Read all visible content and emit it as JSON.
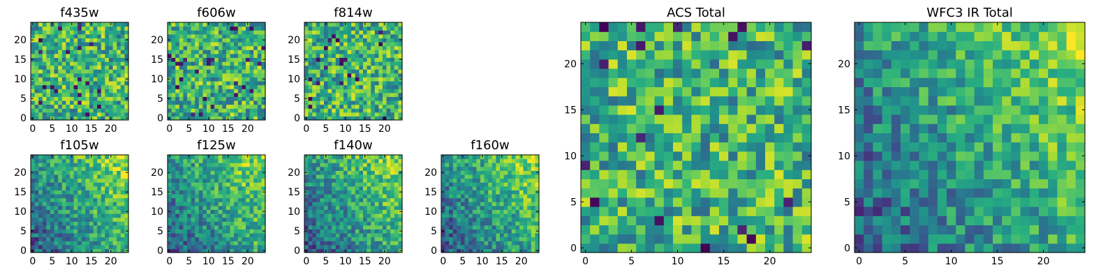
{
  "chart_data": [
    {
      "type": "heatmap",
      "title": "f435w",
      "grid_size": 25,
      "xticks": [
        0,
        5,
        10,
        15,
        20
      ],
      "yticks": [
        0,
        5,
        10,
        15,
        20
      ],
      "xlim": [
        -0.5,
        24.5
      ],
      "ylim": [
        -0.5,
        24.5
      ],
      "colormap": "viridis",
      "pattern": "noise",
      "seed": 11
    },
    {
      "type": "heatmap",
      "title": "f606w",
      "grid_size": 25,
      "xticks": [
        0,
        5,
        10,
        15,
        20
      ],
      "yticks": [
        0,
        5,
        10,
        15,
        20
      ],
      "xlim": [
        -0.5,
        24.5
      ],
      "ylim": [
        -0.5,
        24.5
      ],
      "colormap": "viridis",
      "pattern": "noise",
      "seed": 23
    },
    {
      "type": "heatmap",
      "title": "f814w",
      "grid_size": 25,
      "xticks": [
        0,
        5,
        10,
        15,
        20
      ],
      "yticks": [
        0,
        5,
        10,
        15,
        20
      ],
      "xlim": [
        -0.5,
        24.5
      ],
      "ylim": [
        -0.5,
        24.5
      ],
      "colormap": "viridis",
      "pattern": "noise",
      "seed": 37
    },
    {
      "type": "heatmap",
      "title": "f105w",
      "grid_size": 25,
      "xticks": [
        0,
        5,
        10,
        15,
        20
      ],
      "yticks": [
        0,
        5,
        10,
        15,
        20
      ],
      "xlim": [
        -0.5,
        24.5
      ],
      "ylim": [
        -0.5,
        24.5
      ],
      "colormap": "viridis",
      "pattern": "gradient",
      "seed": 41
    },
    {
      "type": "heatmap",
      "title": "f125w",
      "grid_size": 25,
      "xticks": [
        0,
        5,
        10,
        15,
        20
      ],
      "yticks": [
        0,
        5,
        10,
        15,
        20
      ],
      "xlim": [
        -0.5,
        24.5
      ],
      "ylim": [
        -0.5,
        24.5
      ],
      "colormap": "viridis",
      "pattern": "gradient",
      "seed": 53
    },
    {
      "type": "heatmap",
      "title": "f140w",
      "grid_size": 25,
      "xticks": [
        0,
        5,
        10,
        15,
        20
      ],
      "yticks": [
        0,
        5,
        10,
        15,
        20
      ],
      "xlim": [
        -0.5,
        24.5
      ],
      "ylim": [
        -0.5,
        24.5
      ],
      "colormap": "viridis",
      "pattern": "gradient",
      "seed": 67
    },
    {
      "type": "heatmap",
      "title": "f160w",
      "grid_size": 25,
      "xticks": [
        0,
        5,
        10,
        15,
        20
      ],
      "yticks": [
        0,
        5,
        10,
        15,
        20
      ],
      "xlim": [
        -0.5,
        24.5
      ],
      "ylim": [
        -0.5,
        24.5
      ],
      "colormap": "viridis",
      "pattern": "gradient",
      "seed": 79
    },
    {
      "type": "heatmap",
      "title": "ACS Total",
      "grid_size": 25,
      "xticks": [
        0,
        5,
        10,
        15,
        20
      ],
      "yticks": [
        0,
        5,
        10,
        15,
        20
      ],
      "xlim": [
        -0.5,
        24.5
      ],
      "ylim": [
        -0.5,
        24.5
      ],
      "colormap": "viridis",
      "pattern": "noise",
      "seed": 97
    },
    {
      "type": "heatmap",
      "title": "WFC3 IR Total",
      "grid_size": 25,
      "xticks": [
        0,
        5,
        10,
        15,
        20
      ],
      "yticks": [
        0,
        5,
        10,
        15,
        20
      ],
      "xlim": [
        -0.5,
        24.5
      ],
      "ylim": [
        -0.5,
        24.5
      ],
      "colormap": "viridis",
      "pattern": "gradient",
      "seed": 113
    }
  ]
}
